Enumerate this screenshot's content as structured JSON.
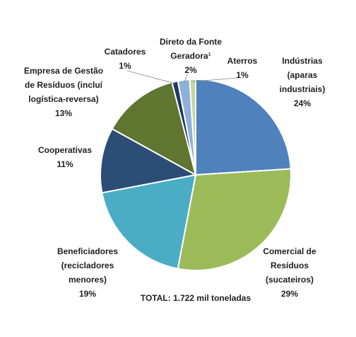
{
  "chart_data": {
    "type": "pie",
    "categories": [
      [
        "Indústrias",
        "(aparas",
        "industriais)"
      ],
      [
        "Comercial de",
        "Resíduos",
        "(sucateiros)"
      ],
      [
        "Beneficiadores",
        "(recicladores",
        "menores)"
      ],
      [
        "Cooperativas"
      ],
      [
        "Empresa de Gestão",
        "de Resíduos (incluí",
        "logística-reversa)"
      ],
      [
        "Catadores"
      ],
      [
        "Direto da Fonte",
        "Geradora¹"
      ],
      [
        "Aterros"
      ]
    ],
    "values": [
      24,
      29,
      19,
      11,
      13,
      1,
      2,
      1
    ],
    "value_labels": [
      "24%",
      "29%",
      "19%",
      "11%",
      "13%",
      "1%",
      "2%",
      "1%"
    ],
    "colors": [
      "#4f81bd",
      "#9bbb59",
      "#4bacc6",
      "#2c4d75",
      "#5f7530",
      "#1f3864",
      "#8fb0d9",
      "#c3d69b"
    ],
    "note": "TOTAL: 1.722 mil toneladas"
  }
}
